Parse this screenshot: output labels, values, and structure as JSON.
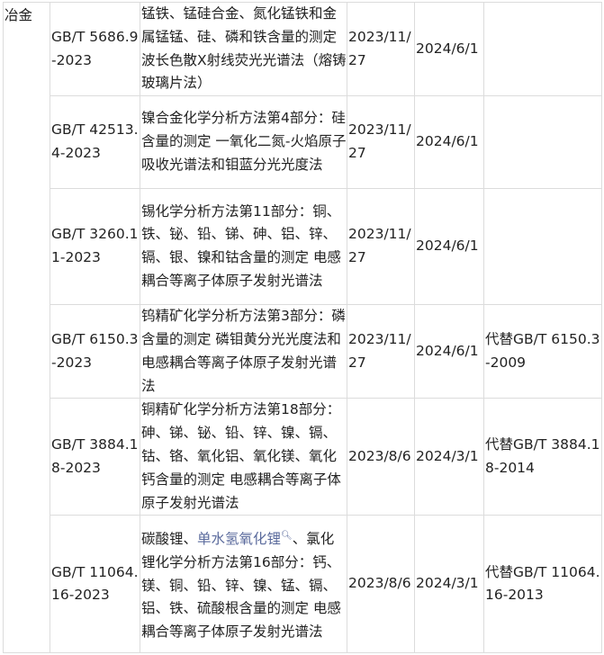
{
  "category": "冶金",
  "rows": [
    {
      "code": "GB/T 5686.9-2023",
      "title": "锰铁、锰硅合金、氮化锰铁和金属锰锰、硅、磷和铁含量的测定 波长色散X射线荧光光谱法（熔铸玻璃片法）",
      "publish": "2023/11/27",
      "effective": "2024/6/1",
      "replace": ""
    },
    {
      "code": "GB/T 42513.4-2023",
      "title": "镍合金化学分析方法第4部分：硅含量的测定 一氧化二氮-火焰原子吸收光谱法和钼蓝分光光度法",
      "publish": "2023/11/27",
      "effective": "2024/6/1",
      "replace": ""
    },
    {
      "code": "GB/T 3260.11-2023",
      "title": "锡化学分析方法第11部分：铜、铁、铋、铅、锑、砷、铝、锌、镉、银、镍和钴含量的测定 电感耦合等离子体原子发射光谱法",
      "publish": "2023/11/27",
      "effective": "2024/6/1",
      "replace": ""
    },
    {
      "code": "GB/T 6150.3-2023",
      "title": "钨精矿化学分析方法第3部分：磷含量的测定 磷钼黄分光光度法和电感耦合等离子体原子发射光谱法",
      "publish": "2023/11/27",
      "effective": "2024/6/1",
      "replace": "代替GB/T 6150.3-2009"
    },
    {
      "code": "GB/T 3884.18-2023",
      "title": "铜精矿化学分析方法第18部分：砷、锑、铋、铅、锌、镍、镉、钴、铬、氧化铝、氧化镁、氧化钙含量的测定 电感耦合等离子体原子发射光谱法",
      "publish": "2023/8/6",
      "effective": "2024/3/1",
      "replace": "代替GB/T 3884.18-2014"
    },
    {
      "code": "GB/T 11064.16-2023",
      "title_pre": "碳酸锂、",
      "title_link": "单水氢氧化锂",
      "title_post": "、氯化锂化学分析方法第16部分：钙、镁、铜、铅、锌、镍、锰、镉、铝、铁、硫酸根含量的测定 电感耦合等离子体原子发射光谱法",
      "publish": "2023/8/6",
      "effective": "2024/3/1",
      "replace": "代替GB/T 11064.16-2013"
    }
  ],
  "icons": {
    "link_search": "search-icon"
  },
  "colors": {
    "link": "#5a6a9c",
    "border": "#dcdcdc"
  }
}
